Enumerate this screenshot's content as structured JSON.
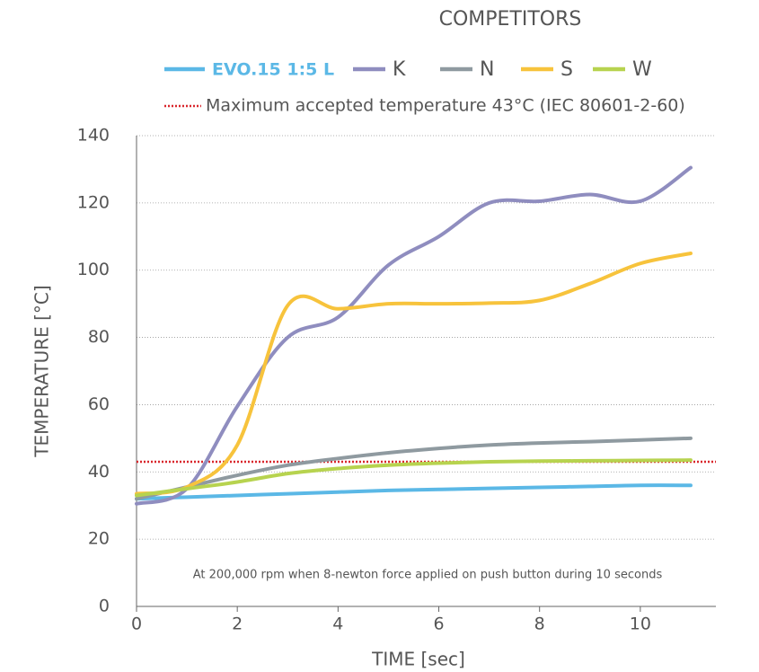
{
  "chart_data": {
    "type": "line",
    "legend_heading": "COMPETITORS",
    "x_label": "TIME [sec]",
    "y_label": "TEMPERATURE [°C]",
    "annotation": "At 200,000 rpm when 8-newton force applied on push button during 10 seconds",
    "x": [
      0,
      1,
      2,
      3,
      4,
      5,
      6,
      7,
      8,
      9,
      10,
      11
    ],
    "series": [
      {
        "name": "EVO.15 1:5 L",
        "color": "#5bb8e6",
        "values": [
          32,
          32.5,
          33,
          33.5,
          34,
          34.5,
          34.8,
          35.1,
          35.4,
          35.7,
          36,
          36
        ]
      },
      {
        "name": "K",
        "color": "#8f8dbf",
        "values": [
          30.5,
          35,
          59.5,
          80,
          86,
          101.5,
          110,
          120,
          120.5,
          122.5,
          120.5,
          130.5
        ]
      },
      {
        "name": "N",
        "color": "#8f9aa0",
        "values": [
          32,
          35.5,
          39,
          42,
          44,
          45.7,
          47,
          48,
          48.6,
          49,
          49.5,
          50
        ]
      },
      {
        "name": "S",
        "color": "#f7c33c",
        "values": [
          33.5,
          35.5,
          48,
          89.5,
          88.5,
          90,
          90,
          90.2,
          91,
          96,
          102,
          105
        ]
      },
      {
        "name": "W",
        "color": "#b7d34f",
        "values": [
          33,
          35,
          37,
          39.5,
          41,
          42,
          42.6,
          43,
          43.2,
          43.3,
          43.4,
          43.5
        ]
      }
    ],
    "reference_line": {
      "label": "Maximum accepted temperature 43°C (IEC 80601-2-60)",
      "value": 43,
      "color": "#d9262c"
    },
    "xlim": [
      0,
      11.5
    ],
    "xticks": [
      0,
      2,
      4,
      6,
      8,
      10
    ],
    "ylim": [
      0,
      140
    ],
    "yticks": [
      0,
      20,
      40,
      60,
      80,
      100,
      120,
      140
    ],
    "grid": true
  }
}
